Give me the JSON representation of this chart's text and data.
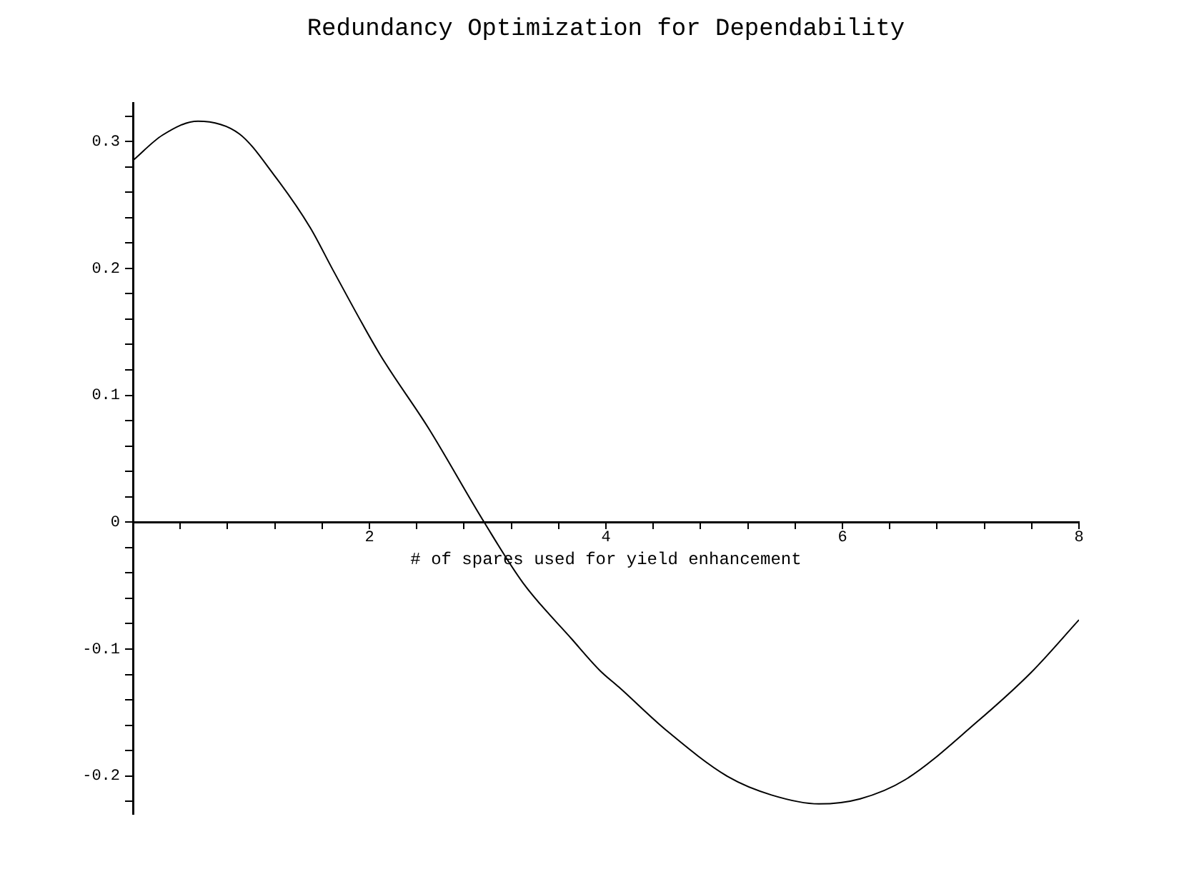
{
  "chart_data": {
    "type": "line",
    "title": "Redundancy Optimization for Dependability",
    "xlabel": "# of spares used for yield enhancement",
    "series": [
      {
        "color": "#000000",
        "x": [
          0,
          0.25,
          0.55,
          0.9,
          1.19,
          1.5,
          1.69,
          2.09,
          2.5,
          2.97,
          3.3,
          3.71,
          3.95,
          4.11,
          4.51,
          5.04,
          5.4,
          5.8,
          6.15,
          6.53,
          7.13,
          7.6,
          8
        ],
        "values": [
          0.285,
          0.305,
          0.316,
          0.306,
          0.274,
          0.232,
          0.199,
          0.132,
          0.074,
          0,
          -0.048,
          -0.092,
          -0.117,
          -0.13,
          -0.164,
          -0.201,
          -0.215,
          -0.222,
          -0.218,
          -0.203,
          -0.158,
          -0.118,
          -0.077
        ]
      }
    ],
    "xlim": [
      0,
      8
    ],
    "ylim": [
      -0.23,
      0.33
    ],
    "xticks": [
      {
        "value": 0,
        "label": null
      },
      {
        "value": 0.4,
        "label": null
      },
      {
        "value": 0.8,
        "label": null
      },
      {
        "value": 1.2,
        "label": null
      },
      {
        "value": 1.6,
        "label": null
      },
      2,
      {
        "value": 2.4,
        "label": null
      },
      {
        "value": 2.8,
        "label": null
      },
      {
        "value": 3.2,
        "label": null
      },
      {
        "value": 3.6,
        "label": null
      },
      4,
      {
        "value": 4.4,
        "label": null
      },
      {
        "value": 4.8,
        "label": null
      },
      {
        "value": 5.2,
        "label": null
      },
      {
        "value": 5.6,
        "label": null
      },
      6,
      {
        "value": 6.4,
        "label": null
      },
      {
        "value": 6.8,
        "label": null
      },
      {
        "value": 7.2,
        "label": null
      },
      {
        "value": 7.6,
        "label": null
      },
      8
    ],
    "yticks": [
      {
        "value": -0.22,
        "label": null
      },
      -0.2,
      {
        "value": -0.18,
        "label": null
      },
      {
        "value": -0.16,
        "label": null
      },
      {
        "value": -0.14,
        "label": null
      },
      {
        "value": -0.12,
        "label": null
      },
      -0.1,
      {
        "value": -0.08,
        "label": null
      },
      {
        "value": -0.06,
        "label": null
      },
      {
        "value": -0.04,
        "label": null
      },
      {
        "value": -0.02,
        "label": null
      },
      0,
      {
        "value": 0.02,
        "label": null
      },
      {
        "value": 0.04,
        "label": null
      },
      {
        "value": 0.06,
        "label": null
      },
      {
        "value": 0.08,
        "label": null
      },
      0.1,
      {
        "value": 0.12,
        "label": null
      },
      {
        "value": 0.14,
        "label": null
      },
      {
        "value": 0.16,
        "label": null
      },
      {
        "value": 0.18,
        "label": null
      },
      0.2,
      {
        "value": 0.22,
        "label": null
      },
      {
        "value": 0.24,
        "label": null
      },
      {
        "value": 0.26,
        "label": null
      },
      {
        "value": 0.28,
        "label": null
      },
      0.3,
      {
        "value": 0.32,
        "label": null
      }
    ],
    "marker": "none",
    "legend": false
  }
}
